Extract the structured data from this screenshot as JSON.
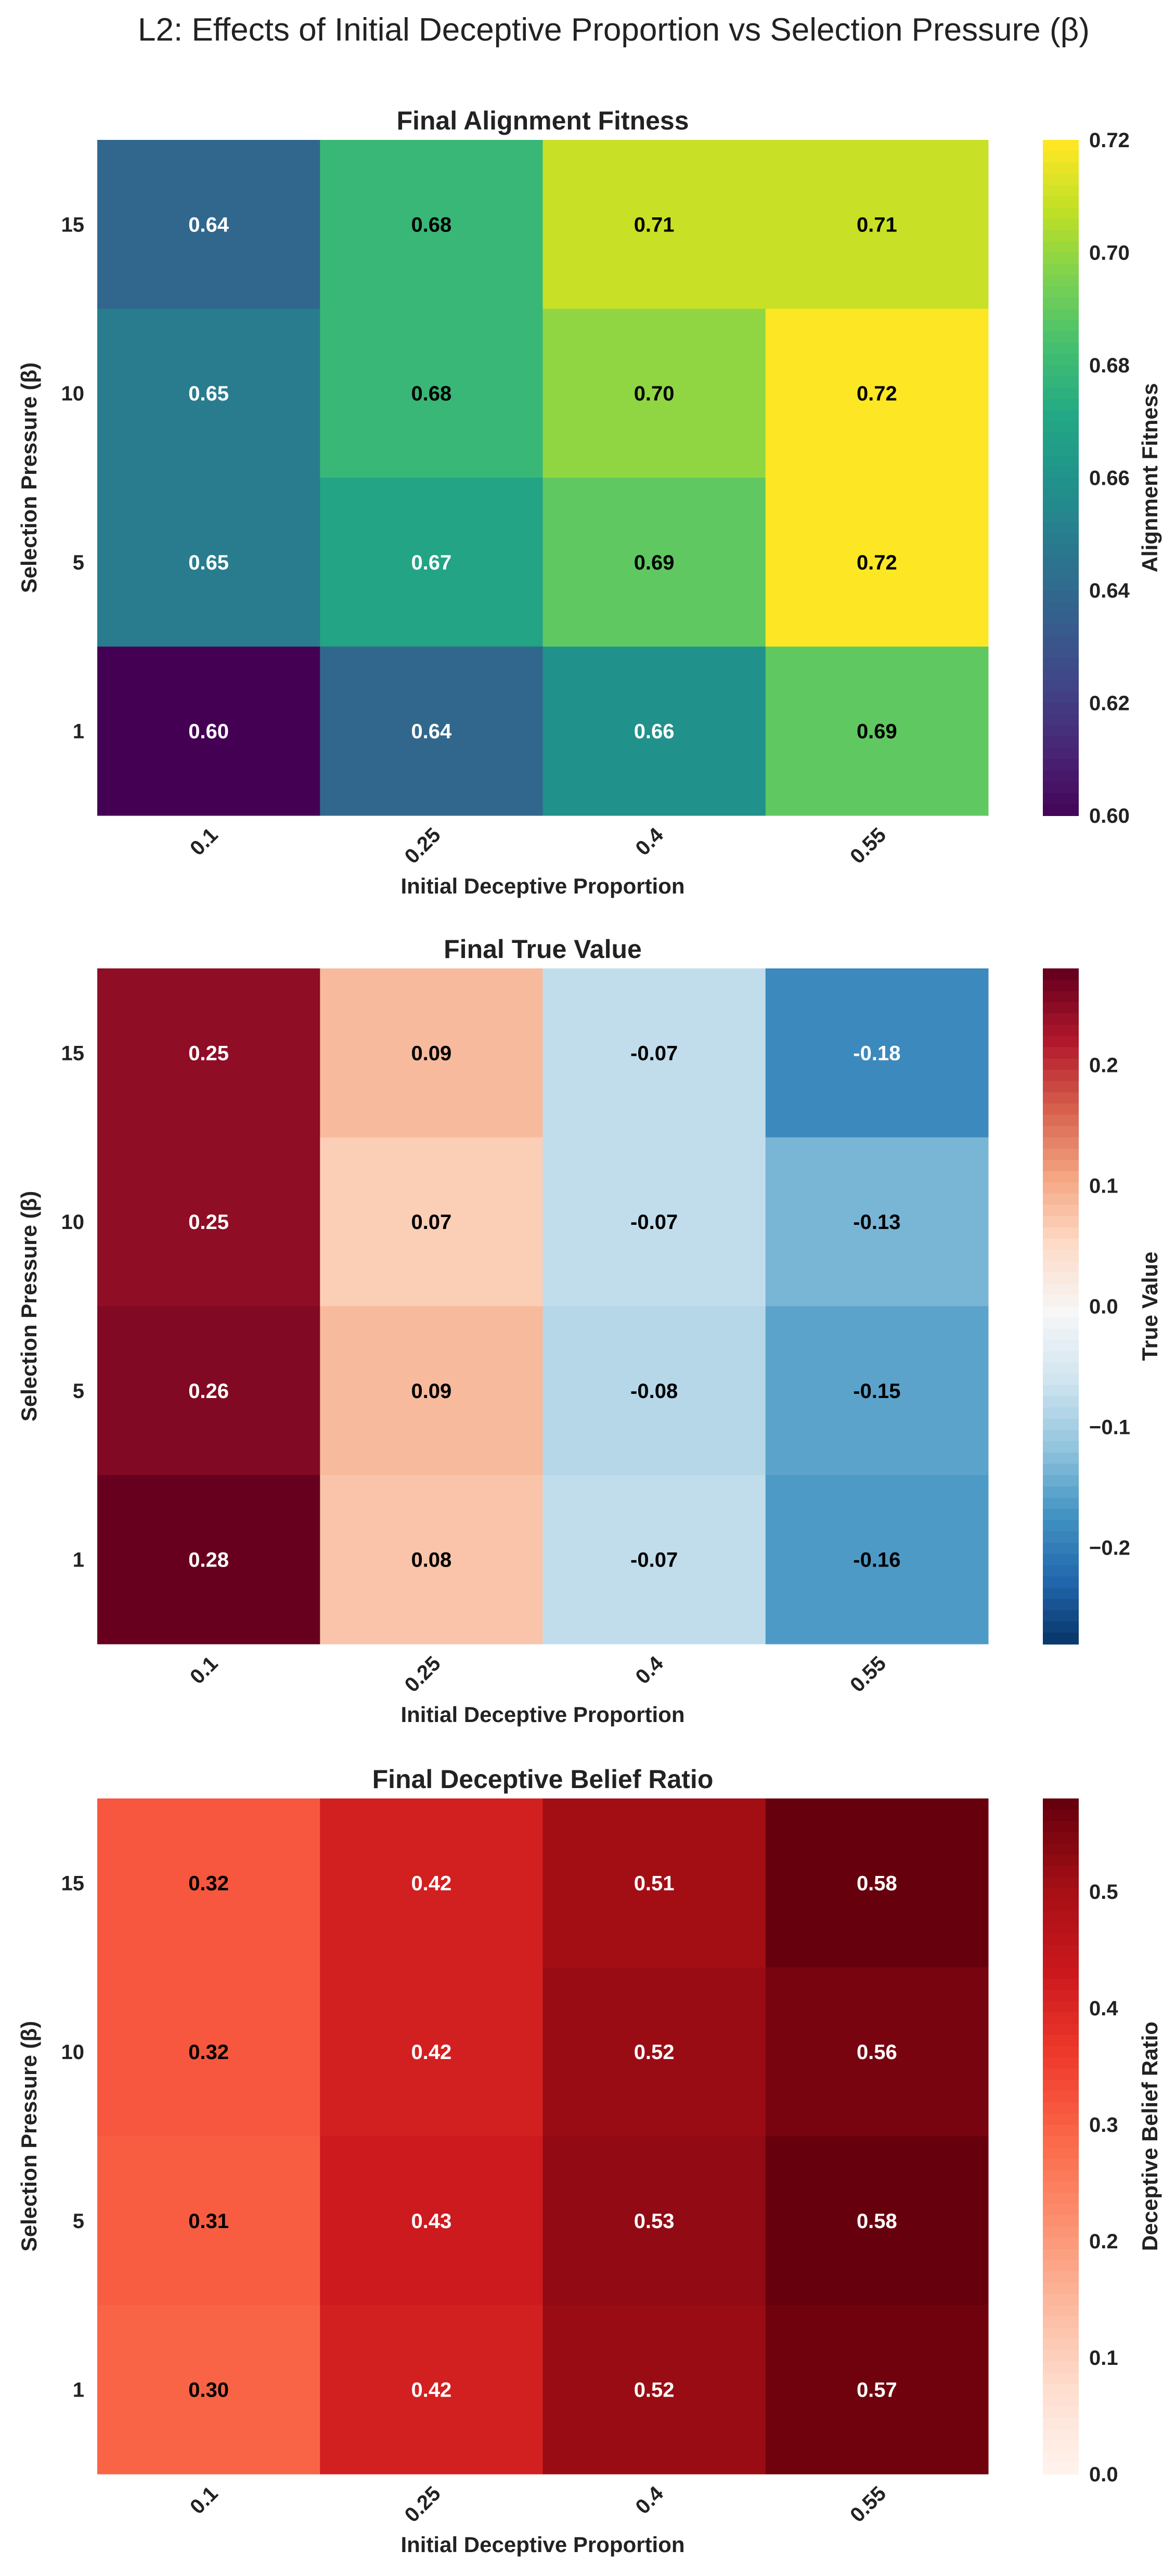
{
  "suptitle": "L2: Effects of Initial Deceptive Proportion vs Selection Pressure (β)",
  "chart_data": [
    {
      "type": "heatmap",
      "title": "Final Alignment Fitness",
      "xlabel": "Initial Deceptive Proportion",
      "ylabel": "Selection Pressure (β)",
      "x_ticks": [
        "0.1",
        "0.25",
        "0.4",
        "0.55"
      ],
      "y_ticks": [
        "15",
        "10",
        "5",
        "1"
      ],
      "values": [
        [
          0.64,
          0.68,
          0.71,
          0.71
        ],
        [
          0.65,
          0.68,
          0.7,
          0.72
        ],
        [
          0.65,
          0.67,
          0.69,
          0.72
        ],
        [
          0.6,
          0.64,
          0.66,
          0.69
        ]
      ],
      "colormap": "viridis",
      "vmin": 0.6,
      "vmax": 0.72,
      "colorbar_label": "Alignment Fitness",
      "colorbar_ticks": [
        "0.60",
        "0.62",
        "0.64",
        "0.66",
        "0.68",
        "0.70",
        "0.72"
      ]
    },
    {
      "type": "heatmap",
      "title": "Final True Value",
      "xlabel": "Initial Deceptive Proportion",
      "ylabel": "Selection Pressure (β)",
      "x_ticks": [
        "0.1",
        "0.25",
        "0.4",
        "0.55"
      ],
      "y_ticks": [
        "15",
        "10",
        "5",
        "1"
      ],
      "values": [
        [
          0.25,
          0.09,
          -0.07,
          -0.18
        ],
        [
          0.25,
          0.07,
          -0.07,
          -0.13
        ],
        [
          0.26,
          0.09,
          -0.08,
          -0.15
        ],
        [
          0.28,
          0.08,
          -0.07,
          -0.16
        ]
      ],
      "colormap": "RdBu_r",
      "vmin": -0.28,
      "vmax": 0.28,
      "colorbar_label": "True Value",
      "colorbar_ticks": [
        "−0.2",
        "−0.1",
        "0.0",
        "0.1",
        "0.2"
      ]
    },
    {
      "type": "heatmap",
      "title": "Final Deceptive Belief Ratio",
      "xlabel": "Initial Deceptive Proportion",
      "ylabel": "Selection Pressure (β)",
      "x_ticks": [
        "0.1",
        "0.25",
        "0.4",
        "0.55"
      ],
      "y_ticks": [
        "15",
        "10",
        "5",
        "1"
      ],
      "values": [
        [
          0.32,
          0.42,
          0.51,
          0.58
        ],
        [
          0.32,
          0.42,
          0.52,
          0.56
        ],
        [
          0.31,
          0.43,
          0.53,
          0.58
        ],
        [
          0.3,
          0.42,
          0.52,
          0.57
        ]
      ],
      "colormap": "Reds",
      "vmin": 0.0,
      "vmax": 0.58,
      "colorbar_label": "Deceptive Belief Ratio",
      "colorbar_ticks": [
        "0.0",
        "0.1",
        "0.2",
        "0.3",
        "0.4",
        "0.5"
      ]
    }
  ]
}
